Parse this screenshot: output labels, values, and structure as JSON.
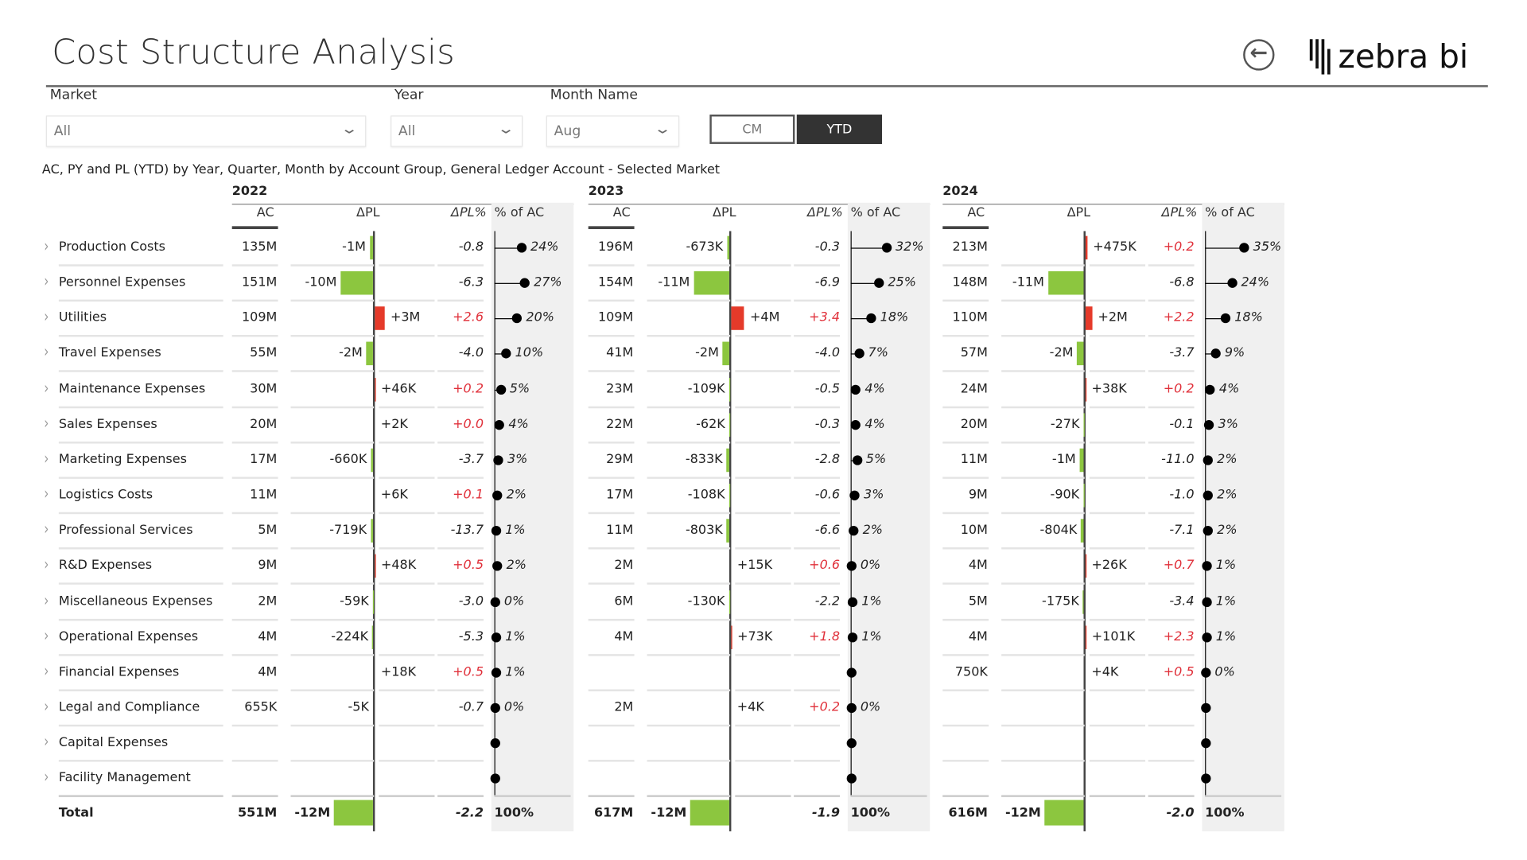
{
  "header": {
    "title": "Cost Structure Analysis",
    "back_icon": "arrow-left-circle-icon",
    "logo_text": "zebra bi"
  },
  "filters": {
    "market": {
      "label": "Market",
      "value": "All"
    },
    "year": {
      "label": "Year",
      "value": "All"
    },
    "month": {
      "label": "Month Name",
      "value": "Aug"
    },
    "toggle": {
      "cm": "CM",
      "ytd": "YTD",
      "selected": "YTD"
    }
  },
  "visual": {
    "subtitle": "AC, PY and PL (YTD) by Year, Quarter, Month by Account Group, General Ledger Account - Selected Market",
    "columns": {
      "ac": "AC",
      "dpl": "ΔPL",
      "dplp": "ΔPL%",
      "pct": "% of AC"
    }
  },
  "colors": {
    "positive_bar": "#e53a2a",
    "negative_bar": "#8cc63f",
    "positive_text": "#e0303a"
  },
  "accounts": [
    "Production Costs",
    "Personnel Expenses",
    "Utilities",
    "Travel Expenses",
    "Maintenance Expenses",
    "Sales Expenses",
    "Marketing Expenses",
    "Logistics Costs",
    "Professional Services",
    "R&D Expenses",
    "Miscellaneous Expenses",
    "Operational Expenses",
    "Financial Expenses",
    "Legal and Compliance",
    "Capital Expenses",
    "Facility Management"
  ],
  "total_label": "Total",
  "chart_data": [
    {
      "type": "table",
      "year": "2022",
      "rows": [
        {
          "ac": "135M",
          "dpl": "-1M",
          "dpl_m": -1,
          "dplp": "-0.8",
          "pct": "24%",
          "pct_v": 24
        },
        {
          "ac": "151M",
          "dpl": "-10M",
          "dpl_m": -10,
          "dplp": "-6.3",
          "pct": "27%",
          "pct_v": 27
        },
        {
          "ac": "109M",
          "dpl": "+3M",
          "dpl_m": 3,
          "dplp": "+2.6",
          "pct": "20%",
          "pct_v": 20
        },
        {
          "ac": "55M",
          "dpl": "-2M",
          "dpl_m": -2,
          "dplp": "-4.0",
          "pct": "10%",
          "pct_v": 10
        },
        {
          "ac": "30M",
          "dpl": "+46K",
          "dpl_m": 0.046,
          "dplp": "+0.2",
          "pct": "5%",
          "pct_v": 5
        },
        {
          "ac": "20M",
          "dpl": "+2K",
          "dpl_m": 0.002,
          "dplp": "+0.0",
          "pct": "4%",
          "pct_v": 4
        },
        {
          "ac": "17M",
          "dpl": "-660K",
          "dpl_m": -0.66,
          "dplp": "-3.7",
          "pct": "3%",
          "pct_v": 3
        },
        {
          "ac": "11M",
          "dpl": "+6K",
          "dpl_m": 0.006,
          "dplp": "+0.1",
          "pct": "2%",
          "pct_v": 2
        },
        {
          "ac": "5M",
          "dpl": "-719K",
          "dpl_m": -0.719,
          "dplp": "-13.7",
          "pct": "1%",
          "pct_v": 1
        },
        {
          "ac": "9M",
          "dpl": "+48K",
          "dpl_m": 0.048,
          "dplp": "+0.5",
          "pct": "2%",
          "pct_v": 2
        },
        {
          "ac": "2M",
          "dpl": "-59K",
          "dpl_m": -0.059,
          "dplp": "-3.0",
          "pct": "0%",
          "pct_v": 0
        },
        {
          "ac": "4M",
          "dpl": "-224K",
          "dpl_m": -0.224,
          "dplp": "-5.3",
          "pct": "1%",
          "pct_v": 1
        },
        {
          "ac": "4M",
          "dpl": "+18K",
          "dpl_m": 0.018,
          "dplp": "+0.5",
          "pct": "1%",
          "pct_v": 1
        },
        {
          "ac": "655K",
          "dpl": "-5K",
          "dpl_m": -0.005,
          "dplp": "-0.7",
          "pct": "0%",
          "pct_v": 0
        },
        {
          "ac": "",
          "dpl": "",
          "dpl_m": 0,
          "dplp": "",
          "pct": "",
          "pct_v": 0
        },
        {
          "ac": "",
          "dpl": "",
          "dpl_m": 0,
          "dplp": "",
          "pct": "",
          "pct_v": 0
        }
      ],
      "total": {
        "ac": "551M",
        "dpl": "-12M",
        "dpl_m": -12,
        "dplp": "-2.2",
        "pct": "100%"
      }
    },
    {
      "type": "table",
      "year": "2023",
      "rows": [
        {
          "ac": "196M",
          "dpl": "-673K",
          "dpl_m": -0.673,
          "dplp": "-0.3",
          "pct": "32%",
          "pct_v": 32
        },
        {
          "ac": "154M",
          "dpl": "-11M",
          "dpl_m": -11,
          "dplp": "-6.9",
          "pct": "25%",
          "pct_v": 25
        },
        {
          "ac": "109M",
          "dpl": "+4M",
          "dpl_m": 4,
          "dplp": "+3.4",
          "pct": "18%",
          "pct_v": 18
        },
        {
          "ac": "41M",
          "dpl": "-2M",
          "dpl_m": -2,
          "dplp": "-4.0",
          "pct": "7%",
          "pct_v": 7
        },
        {
          "ac": "23M",
          "dpl": "-109K",
          "dpl_m": -0.109,
          "dplp": "-0.5",
          "pct": "4%",
          "pct_v": 4
        },
        {
          "ac": "22M",
          "dpl": "-62K",
          "dpl_m": -0.062,
          "dplp": "-0.3",
          "pct": "4%",
          "pct_v": 4
        },
        {
          "ac": "29M",
          "dpl": "-833K",
          "dpl_m": -0.833,
          "dplp": "-2.8",
          "pct": "5%",
          "pct_v": 5
        },
        {
          "ac": "17M",
          "dpl": "-108K",
          "dpl_m": -0.108,
          "dplp": "-0.6",
          "pct": "3%",
          "pct_v": 3
        },
        {
          "ac": "11M",
          "dpl": "-803K",
          "dpl_m": -0.803,
          "dplp": "-6.6",
          "pct": "2%",
          "pct_v": 2
        },
        {
          "ac": "2M",
          "dpl": "+15K",
          "dpl_m": 0.015,
          "dplp": "+0.6",
          "pct": "0%",
          "pct_v": 0
        },
        {
          "ac": "6M",
          "dpl": "-130K",
          "dpl_m": -0.13,
          "dplp": "-2.2",
          "pct": "1%",
          "pct_v": 1
        },
        {
          "ac": "4M",
          "dpl": "+73K",
          "dpl_m": 0.073,
          "dplp": "+1.8",
          "pct": "1%",
          "pct_v": 1
        },
        {
          "ac": "",
          "dpl": "",
          "dpl_m": 0,
          "dplp": "",
          "pct": "",
          "pct_v": 0
        },
        {
          "ac": "2M",
          "dpl": "+4K",
          "dpl_m": 0.004,
          "dplp": "+0.2",
          "pct": "0%",
          "pct_v": 0
        },
        {
          "ac": "",
          "dpl": "",
          "dpl_m": 0,
          "dplp": "",
          "pct": "",
          "pct_v": 0
        },
        {
          "ac": "",
          "dpl": "",
          "dpl_m": 0,
          "dplp": "",
          "pct": "",
          "pct_v": 0
        }
      ],
      "total": {
        "ac": "617M",
        "dpl": "-12M",
        "dpl_m": -12,
        "dplp": "-1.9",
        "pct": "100%"
      }
    },
    {
      "type": "table",
      "year": "2024",
      "rows": [
        {
          "ac": "213M",
          "dpl": "+475K",
          "dpl_m": 0.475,
          "dplp": "+0.2",
          "pct": "35%",
          "pct_v": 35
        },
        {
          "ac": "148M",
          "dpl": "-11M",
          "dpl_m": -11,
          "dplp": "-6.8",
          "pct": "24%",
          "pct_v": 24
        },
        {
          "ac": "110M",
          "dpl": "+2M",
          "dpl_m": 2,
          "dplp": "+2.2",
          "pct": "18%",
          "pct_v": 18
        },
        {
          "ac": "57M",
          "dpl": "-2M",
          "dpl_m": -2,
          "dplp": "-3.7",
          "pct": "9%",
          "pct_v": 9
        },
        {
          "ac": "24M",
          "dpl": "+38K",
          "dpl_m": 0.038,
          "dplp": "+0.2",
          "pct": "4%",
          "pct_v": 4
        },
        {
          "ac": "20M",
          "dpl": "-27K",
          "dpl_m": -0.027,
          "dplp": "-0.1",
          "pct": "3%",
          "pct_v": 3
        },
        {
          "ac": "11M",
          "dpl": "-1M",
          "dpl_m": -1.2,
          "dplp": "-11.0",
          "pct": "2%",
          "pct_v": 2
        },
        {
          "ac": "9M",
          "dpl": "-90K",
          "dpl_m": -0.09,
          "dplp": "-1.0",
          "pct": "2%",
          "pct_v": 2
        },
        {
          "ac": "10M",
          "dpl": "-804K",
          "dpl_m": -0.804,
          "dplp": "-7.1",
          "pct": "2%",
          "pct_v": 2
        },
        {
          "ac": "4M",
          "dpl": "+26K",
          "dpl_m": 0.026,
          "dplp": "+0.7",
          "pct": "1%",
          "pct_v": 1
        },
        {
          "ac": "5M",
          "dpl": "-175K",
          "dpl_m": -0.175,
          "dplp": "-3.4",
          "pct": "1%",
          "pct_v": 1
        },
        {
          "ac": "4M",
          "dpl": "+101K",
          "dpl_m": 0.101,
          "dplp": "+2.3",
          "pct": "1%",
          "pct_v": 1
        },
        {
          "ac": "750K",
          "dpl": "+4K",
          "dpl_m": 0.004,
          "dplp": "+0.5",
          "pct": "0%",
          "pct_v": 0
        },
        {
          "ac": "",
          "dpl": "",
          "dpl_m": 0,
          "dplp": "",
          "pct": "",
          "pct_v": 0
        },
        {
          "ac": "",
          "dpl": "",
          "dpl_m": 0,
          "dplp": "",
          "pct": "",
          "pct_v": 0
        },
        {
          "ac": "",
          "dpl": "",
          "dpl_m": 0,
          "dplp": "",
          "pct": "",
          "pct_v": 0
        }
      ],
      "total": {
        "ac": "616M",
        "dpl": "-12M",
        "dpl_m": -12,
        "dplp": "-2.0",
        "pct": "100%"
      }
    }
  ]
}
